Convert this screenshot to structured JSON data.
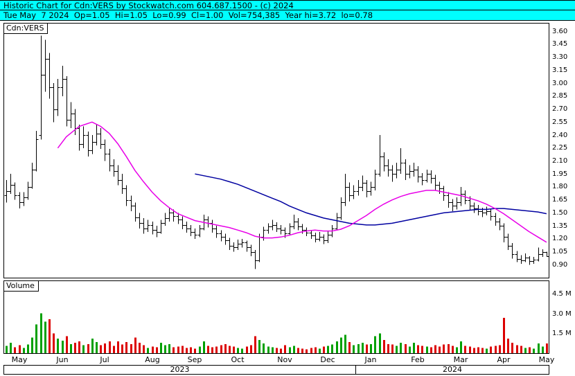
{
  "header": {
    "line1": "Historic Chart for Cdn:VERS by Stockwatch.com 604.687.1500 - (c) 2024",
    "line2": "Tue May  7 2024  Op=1.05  Hi=1.05  Lo=0.99  Cl=1.00  Vol=754,385  Year hi=3.72  lo=0.78"
  },
  "labels": {
    "volume_panel": "Volume"
  },
  "chart_data": {
    "type": "ohlc",
    "symbol": "Cdn:VERS",
    "quote": {
      "date": "Tue May 7 2024",
      "open": "1.05",
      "high": "1.05",
      "low": "0.99",
      "close": "1.00",
      "volume": "754,385",
      "year_high": "3.72",
      "year_low": "0.78"
    },
    "colors": {
      "bar": "#000000",
      "up_volume": "#00a000",
      "down_volume": "#dc0000",
      "ma_fast": "#e800e8",
      "ma_slow": "#0000a0",
      "header_bg": "#00ffff"
    },
    "price_axis": {
      "min": 0.75,
      "max": 3.69,
      "ticks": [
        0.9,
        1.05,
        1.2,
        1.35,
        1.5,
        1.65,
        1.8,
        1.95,
        2.1,
        2.25,
        2.4,
        2.55,
        2.7,
        2.85,
        3.0,
        3.15,
        3.3,
        3.45,
        3.6
      ]
    },
    "volume_axis": {
      "min": 0,
      "max": 5.5,
      "ticks": [
        1.5,
        3.0,
        4.5
      ],
      "unit": "M"
    },
    "months": [
      {
        "label": "May",
        "index": 3
      },
      {
        "label": "Jun",
        "index": 13
      },
      {
        "label": "Jul",
        "index": 23
      },
      {
        "label": "Aug",
        "index": 34
      },
      {
        "label": "Sep",
        "index": 44
      },
      {
        "label": "Oct",
        "index": 54
      },
      {
        "label": "Nov",
        "index": 65
      },
      {
        "label": "Dec",
        "index": 75
      },
      {
        "label": "Jan",
        "index": 85
      },
      {
        "label": "Feb",
        "index": 96
      },
      {
        "label": "Mar",
        "index": 106
      },
      {
        "label": "Apr",
        "index": 116
      },
      {
        "label": "May",
        "index": 126
      }
    ],
    "years": [
      {
        "label": "2023",
        "from": 0.0,
        "to": 0.6457
      },
      {
        "label": "2024",
        "from": 0.6457,
        "to": 1.0
      }
    ],
    "bars_format": [
      "open",
      "high",
      "low",
      "close",
      "volume_millions"
    ],
    "bars": [
      [
        1.7,
        1.88,
        1.62,
        1.75,
        0.55
      ],
      [
        1.75,
        1.95,
        1.72,
        1.82,
        0.8
      ],
      [
        1.82,
        1.85,
        1.65,
        1.7,
        0.45
      ],
      [
        1.7,
        1.74,
        1.55,
        1.62,
        0.6
      ],
      [
        1.62,
        1.74,
        1.58,
        1.68,
        0.4
      ],
      [
        1.68,
        1.86,
        1.65,
        1.8,
        0.65
      ],
      [
        1.8,
        2.08,
        1.78,
        2.0,
        1.2
      ],
      [
        2.0,
        2.45,
        1.98,
        2.35,
        2.2
      ],
      [
        2.4,
        3.55,
        2.35,
        3.1,
        3.05
      ],
      [
        3.1,
        3.5,
        2.9,
        3.28,
        2.4
      ],
      [
        3.28,
        3.35,
        2.82,
        2.95,
        2.6
      ],
      [
        2.95,
        3.0,
        2.55,
        2.7,
        1.5
      ],
      [
        2.7,
        3.05,
        2.62,
        2.95,
        1.1
      ],
      [
        2.95,
        3.2,
        2.85,
        3.05,
        0.95
      ],
      [
        3.05,
        3.08,
        2.5,
        2.58,
        1.3
      ],
      [
        2.58,
        2.78,
        2.48,
        2.65,
        0.7
      ],
      [
        2.65,
        2.7,
        2.4,
        2.48,
        0.8
      ],
      [
        2.48,
        2.52,
        2.22,
        2.3,
        0.9
      ],
      [
        2.3,
        2.5,
        2.25,
        2.4,
        0.6
      ],
      [
        2.4,
        2.44,
        2.15,
        2.22,
        0.7
      ],
      [
        2.22,
        2.4,
        2.18,
        2.32,
        1.1
      ],
      [
        2.32,
        2.52,
        2.28,
        2.42,
        0.85
      ],
      [
        2.42,
        2.48,
        2.24,
        2.3,
        0.6
      ],
      [
        2.3,
        2.35,
        2.1,
        2.18,
        0.75
      ],
      [
        2.18,
        2.24,
        1.98,
        2.05,
        0.9
      ],
      [
        2.05,
        2.12,
        1.92,
        1.98,
        0.55
      ],
      [
        1.98,
        2.05,
        1.82,
        1.88,
        0.9
      ],
      [
        1.88,
        1.95,
        1.72,
        1.78,
        0.65
      ],
      [
        1.78,
        1.82,
        1.58,
        1.65,
        0.85
      ],
      [
        1.65,
        1.7,
        1.52,
        1.58,
        0.7
      ],
      [
        1.58,
        1.62,
        1.4,
        1.45,
        1.2
      ],
      [
        1.45,
        1.5,
        1.32,
        1.38,
        0.8
      ],
      [
        1.38,
        1.44,
        1.26,
        1.32,
        0.6
      ],
      [
        1.32,
        1.42,
        1.28,
        1.36,
        0.4
      ],
      [
        1.36,
        1.4,
        1.25,
        1.3,
        0.5
      ],
      [
        1.3,
        1.35,
        1.22,
        1.28,
        0.45
      ],
      [
        1.28,
        1.42,
        1.26,
        1.38,
        0.8
      ],
      [
        1.38,
        1.5,
        1.35,
        1.44,
        0.6
      ],
      [
        1.44,
        1.56,
        1.4,
        1.5,
        0.7
      ],
      [
        1.5,
        1.54,
        1.4,
        1.46,
        0.45
      ],
      [
        1.46,
        1.5,
        1.37,
        1.42,
        0.5
      ],
      [
        1.42,
        1.46,
        1.31,
        1.36,
        0.55
      ],
      [
        1.36,
        1.4,
        1.27,
        1.32,
        0.4
      ],
      [
        1.32,
        1.36,
        1.23,
        1.28,
        0.45
      ],
      [
        1.28,
        1.32,
        1.2,
        1.25,
        0.35
      ],
      [
        1.25,
        1.36,
        1.22,
        1.32,
        0.5
      ],
      [
        1.32,
        1.48,
        1.3,
        1.42,
        0.9
      ],
      [
        1.42,
        1.46,
        1.33,
        1.38,
        0.55
      ],
      [
        1.38,
        1.42,
        1.27,
        1.32,
        0.45
      ],
      [
        1.32,
        1.35,
        1.21,
        1.26,
        0.5
      ],
      [
        1.26,
        1.3,
        1.17,
        1.22,
        0.6
      ],
      [
        1.22,
        1.26,
        1.13,
        1.18,
        0.7
      ],
      [
        1.18,
        1.21,
        1.07,
        1.12,
        0.55
      ],
      [
        1.12,
        1.16,
        1.05,
        1.1,
        0.5
      ],
      [
        1.1,
        1.19,
        1.07,
        1.14,
        0.4
      ],
      [
        1.14,
        1.2,
        1.1,
        1.16,
        0.35
      ],
      [
        1.16,
        1.18,
        1.05,
        1.1,
        0.5
      ],
      [
        1.1,
        1.13,
        1.0,
        1.05,
        0.6
      ],
      [
        1.05,
        1.07,
        0.85,
        0.95,
        1.3
      ],
      [
        0.95,
        1.26,
        0.93,
        1.22,
        1.0
      ],
      [
        1.22,
        1.34,
        1.18,
        1.3,
        0.75
      ],
      [
        1.3,
        1.38,
        1.26,
        1.34,
        0.5
      ],
      [
        1.34,
        1.42,
        1.3,
        1.36,
        0.45
      ],
      [
        1.36,
        1.39,
        1.28,
        1.32,
        0.4
      ],
      [
        1.32,
        1.36,
        1.25,
        1.3,
        0.35
      ],
      [
        1.3,
        1.33,
        1.21,
        1.26,
        0.6
      ],
      [
        1.26,
        1.38,
        1.24,
        1.34,
        0.45
      ],
      [
        1.34,
        1.48,
        1.31,
        1.4,
        0.55
      ],
      [
        1.4,
        1.44,
        1.3,
        1.34,
        0.4
      ],
      [
        1.34,
        1.37,
        1.26,
        1.3,
        0.35
      ],
      [
        1.3,
        1.33,
        1.23,
        1.27,
        0.3
      ],
      [
        1.27,
        1.3,
        1.2,
        1.24,
        0.4
      ],
      [
        1.24,
        1.27,
        1.16,
        1.2,
        0.45
      ],
      [
        1.2,
        1.28,
        1.17,
        1.22,
        0.35
      ],
      [
        1.22,
        1.25,
        1.14,
        1.18,
        0.5
      ],
      [
        1.18,
        1.29,
        1.15,
        1.25,
        0.55
      ],
      [
        1.25,
        1.36,
        1.22,
        1.32,
        0.65
      ],
      [
        1.32,
        1.5,
        1.3,
        1.45,
        0.9
      ],
      [
        1.45,
        1.68,
        1.42,
        1.62,
        1.2
      ],
      [
        1.62,
        1.95,
        1.58,
        1.8,
        1.4
      ],
      [
        1.8,
        1.85,
        1.63,
        1.7,
        0.85
      ],
      [
        1.7,
        1.82,
        1.66,
        1.75,
        0.6
      ],
      [
        1.75,
        1.88,
        1.7,
        1.8,
        0.7
      ],
      [
        1.8,
        1.93,
        1.75,
        1.85,
        0.8
      ],
      [
        1.85,
        1.88,
        1.68,
        1.75,
        0.65
      ],
      [
        1.75,
        1.86,
        1.7,
        1.8,
        0.7
      ],
      [
        1.8,
        2.0,
        1.76,
        1.95,
        1.3
      ],
      [
        1.95,
        2.4,
        1.92,
        2.15,
        1.5
      ],
      [
        2.15,
        2.2,
        1.98,
        2.05,
        1.0
      ],
      [
        2.05,
        2.12,
        1.92,
        2.0,
        0.7
      ],
      [
        2.0,
        2.05,
        1.86,
        1.95,
        0.65
      ],
      [
        1.95,
        2.08,
        1.9,
        2.0,
        0.55
      ],
      [
        2.0,
        2.25,
        1.95,
        2.08,
        0.8
      ],
      [
        2.08,
        2.12,
        1.88,
        1.95,
        0.7
      ],
      [
        1.95,
        2.05,
        1.9,
        1.98,
        0.5
      ],
      [
        1.98,
        2.08,
        1.92,
        2.0,
        0.8
      ],
      [
        2.0,
        2.04,
        1.85,
        1.92,
        0.6
      ],
      [
        1.92,
        1.96,
        1.82,
        1.88,
        0.55
      ],
      [
        1.88,
        2.0,
        1.85,
        1.95,
        0.5
      ],
      [
        1.95,
        1.99,
        1.84,
        1.9,
        0.45
      ],
      [
        1.9,
        1.94,
        1.76,
        1.82,
        0.6
      ],
      [
        1.82,
        1.86,
        1.72,
        1.78,
        0.5
      ],
      [
        1.78,
        1.81,
        1.64,
        1.7,
        0.65
      ],
      [
        1.7,
        1.74,
        1.56,
        1.62,
        0.7
      ],
      [
        1.62,
        1.66,
        1.52,
        1.58,
        0.55
      ],
      [
        1.58,
        1.68,
        1.54,
        1.62,
        0.45
      ],
      [
        1.62,
        1.8,
        1.58,
        1.72,
        0.9
      ],
      [
        1.72,
        1.76,
        1.6,
        1.65,
        0.55
      ],
      [
        1.65,
        1.69,
        1.53,
        1.58,
        0.5
      ],
      [
        1.58,
        1.62,
        1.5,
        1.55,
        0.4
      ],
      [
        1.55,
        1.59,
        1.47,
        1.52,
        0.45
      ],
      [
        1.52,
        1.56,
        1.45,
        1.5,
        0.4
      ],
      [
        1.5,
        1.57,
        1.47,
        1.52,
        0.35
      ],
      [
        1.52,
        1.55,
        1.41,
        1.46,
        0.5
      ],
      [
        1.46,
        1.5,
        1.35,
        1.4,
        0.55
      ],
      [
        1.4,
        1.44,
        1.3,
        1.35,
        0.6
      ],
      [
        1.35,
        1.38,
        1.16,
        1.22,
        2.7
      ],
      [
        1.22,
        1.26,
        1.07,
        1.12,
        1.1
      ],
      [
        1.12,
        1.15,
        0.97,
        1.02,
        0.8
      ],
      [
        1.02,
        1.06,
        0.93,
        0.97,
        0.6
      ],
      [
        0.97,
        1.01,
        0.91,
        0.95,
        0.55
      ],
      [
        0.95,
        1.03,
        0.93,
        0.98,
        0.4
      ],
      [
        0.98,
        1.0,
        0.9,
        0.94,
        0.45
      ],
      [
        0.94,
        0.99,
        0.91,
        0.96,
        0.35
      ],
      [
        0.96,
        1.1,
        0.94,
        1.02,
        0.75
      ],
      [
        1.02,
        1.08,
        0.99,
        1.05,
        0.5
      ],
      [
        1.05,
        1.05,
        0.99,
        1.0,
        0.75
      ]
    ],
    "ma_fast": {
      "points": [
        [
          12,
          2.25
        ],
        [
          14,
          2.38
        ],
        [
          17,
          2.5
        ],
        [
          20,
          2.55
        ],
        [
          22,
          2.5
        ],
        [
          24,
          2.42
        ],
        [
          26,
          2.3
        ],
        [
          28,
          2.15
        ],
        [
          30,
          1.99
        ],
        [
          32,
          1.86
        ],
        [
          34,
          1.74
        ],
        [
          36,
          1.64
        ],
        [
          38,
          1.56
        ],
        [
          40,
          1.49
        ],
        [
          42,
          1.45
        ],
        [
          44,
          1.41
        ],
        [
          46,
          1.39
        ],
        [
          48,
          1.37
        ],
        [
          50,
          1.35
        ],
        [
          52,
          1.33
        ],
        [
          54,
          1.3
        ],
        [
          56,
          1.27
        ],
        [
          58,
          1.23
        ],
        [
          60,
          1.21
        ],
        [
          62,
          1.21
        ],
        [
          64,
          1.22
        ],
        [
          66,
          1.24
        ],
        [
          68,
          1.27
        ],
        [
          70,
          1.29
        ],
        [
          72,
          1.3
        ],
        [
          74,
          1.29
        ],
        [
          76,
          1.29
        ],
        [
          78,
          1.31
        ],
        [
          80,
          1.35
        ],
        [
          82,
          1.41
        ],
        [
          84,
          1.47
        ],
        [
          86,
          1.54
        ],
        [
          88,
          1.6
        ],
        [
          90,
          1.65
        ],
        [
          92,
          1.69
        ],
        [
          94,
          1.72
        ],
        [
          96,
          1.74
        ],
        [
          98,
          1.76
        ],
        [
          100,
          1.76
        ],
        [
          102,
          1.74
        ],
        [
          104,
          1.72
        ],
        [
          106,
          1.7
        ],
        [
          108,
          1.67
        ],
        [
          110,
          1.64
        ],
        [
          112,
          1.6
        ],
        [
          114,
          1.55
        ],
        [
          116,
          1.49
        ],
        [
          118,
          1.42
        ],
        [
          120,
          1.35
        ],
        [
          122,
          1.28
        ],
        [
          124,
          1.22
        ],
        [
          126,
          1.16
        ]
      ]
    },
    "ma_slow": {
      "points": [
        [
          44,
          1.95
        ],
        [
          46,
          1.93
        ],
        [
          48,
          1.91
        ],
        [
          50,
          1.89
        ],
        [
          52,
          1.86
        ],
        [
          54,
          1.83
        ],
        [
          56,
          1.79
        ],
        [
          58,
          1.75
        ],
        [
          60,
          1.71
        ],
        [
          62,
          1.67
        ],
        [
          64,
          1.63
        ],
        [
          66,
          1.58
        ],
        [
          68,
          1.54
        ],
        [
          70,
          1.5
        ],
        [
          72,
          1.47
        ],
        [
          74,
          1.44
        ],
        [
          76,
          1.42
        ],
        [
          78,
          1.4
        ],
        [
          80,
          1.38
        ],
        [
          82,
          1.37
        ],
        [
          84,
          1.36
        ],
        [
          86,
          1.36
        ],
        [
          88,
          1.37
        ],
        [
          90,
          1.38
        ],
        [
          92,
          1.4
        ],
        [
          94,
          1.42
        ],
        [
          96,
          1.44
        ],
        [
          98,
          1.46
        ],
        [
          100,
          1.48
        ],
        [
          102,
          1.5
        ],
        [
          104,
          1.51
        ],
        [
          106,
          1.52
        ],
        [
          108,
          1.53
        ],
        [
          110,
          1.54
        ],
        [
          112,
          1.54
        ],
        [
          114,
          1.55
        ],
        [
          116,
          1.55
        ],
        [
          118,
          1.54
        ],
        [
          120,
          1.53
        ],
        [
          122,
          1.52
        ],
        [
          124,
          1.51
        ],
        [
          126,
          1.49
        ]
      ]
    }
  }
}
